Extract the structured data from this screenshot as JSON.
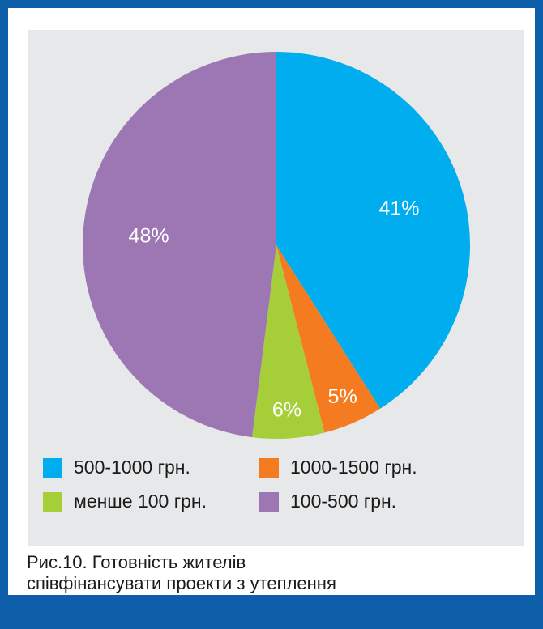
{
  "chart_data": {
    "type": "pie",
    "slices": [
      {
        "name": "500-1000 грн.",
        "value": 41,
        "label": "41%",
        "color": "#00adef"
      },
      {
        "name": "1000-1500 грн.",
        "value": 5,
        "label": "5%",
        "color": "#f47b20"
      },
      {
        "name": "менше 100 грн.",
        "value": 6,
        "label": "6%",
        "color": "#a6ce39"
      },
      {
        "name": "100-500 грн.",
        "value": 48,
        "label": "48%",
        "color": "#9d77b4"
      }
    ],
    "legend_placement": "bottom"
  },
  "caption": {
    "line1": "Рис.10. Готовність жителів",
    "line2": "співфінансувати проекти з утеплення"
  }
}
